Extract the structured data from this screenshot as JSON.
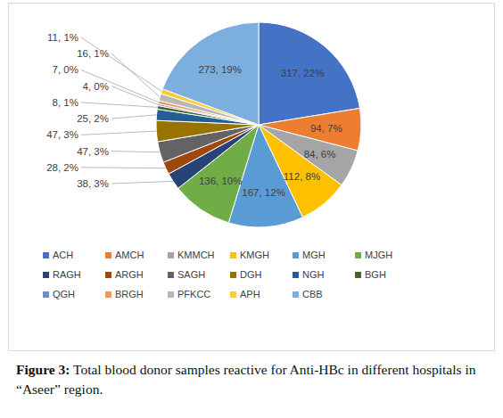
{
  "chart_data": {
    "type": "pie",
    "title": "Figure 3:",
    "subtitle": "Total blood donor samples reactive for Anti-HBc in different hospitals in “Aseer” region.",
    "categories": [
      "ACH",
      "AMCH",
      "KMMCH",
      "KMGH",
      "MGH",
      "MJGH",
      "RAGH",
      "ARGH",
      "SAGH",
      "DGH",
      "NGH",
      "BGH",
      "QGH",
      "BRGH",
      "PFKCC",
      "APH",
      "CBB"
    ],
    "values": [
      317,
      94,
      84,
      112,
      167,
      136,
      38,
      28,
      47,
      47,
      25,
      8,
      4,
      7,
      16,
      11,
      273
    ],
    "value_labels": [
      "317, 22%",
      "94, 7%",
      "84, 6%",
      "112, 8%",
      "167, 12%",
      "136, 10%",
      "38, 3%",
      "28, 2%",
      "47, 3%",
      "47, 3%",
      "25, 2%",
      "8, 1%",
      "4, 0%",
      "7, 0%",
      "16, 1%",
      "11, 1%",
      "273, 19%"
    ],
    "colors": [
      "#4472c4",
      "#ed7d31",
      "#a5a5a5",
      "#ffc000",
      "#5b9bd5",
      "#70ad47",
      "#264478",
      "#9e480e",
      "#636363",
      "#997300",
      "#255e91",
      "#43682b",
      "#698ed0",
      "#f1975a",
      "#b7b7b7",
      "#ffcd33",
      "#7cafdd"
    ],
    "data_labels": true,
    "legend": "bottom"
  }
}
